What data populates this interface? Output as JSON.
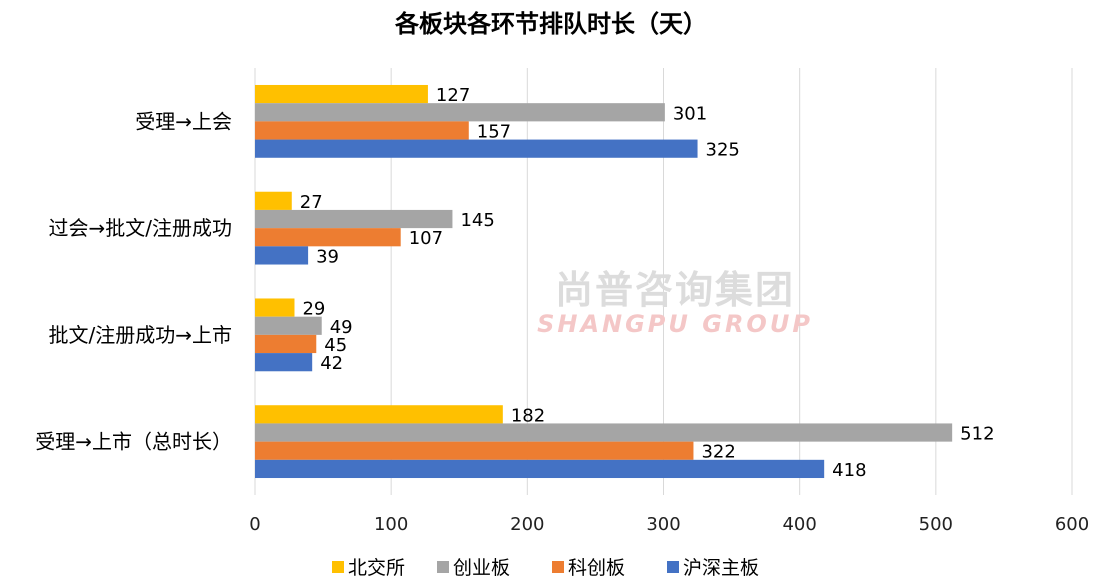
{
  "chart_data": {
    "type": "bar",
    "orientation": "horizontal",
    "title": "各板块各环节排队时长（天）",
    "categories": [
      "受理→上会",
      "过会→批文/注册成功",
      "批文/注册成功→上市",
      "受理→上市（总时长）"
    ],
    "series": [
      {
        "name": "北交所",
        "color": "#FFC000",
        "values": [
          127,
          27,
          29,
          182
        ]
      },
      {
        "name": "创业板",
        "color": "#A5A5A5",
        "values": [
          301,
          145,
          49,
          512
        ]
      },
      {
        "name": "科创板",
        "color": "#ED7D31",
        "values": [
          157,
          107,
          45,
          322
        ]
      },
      {
        "name": "沪深主板",
        "color": "#4472C4",
        "values": [
          325,
          39,
          42,
          418
        ]
      }
    ],
    "xlim": [
      0,
      600
    ],
    "x_ticks": [
      0,
      100,
      200,
      300,
      400,
      500,
      600
    ],
    "grid": "vertical",
    "legend": "bottom",
    "data_labels": true
  },
  "watermark": {
    "cn": "尚普咨询集团",
    "en": "SHANGPU GROUP"
  }
}
